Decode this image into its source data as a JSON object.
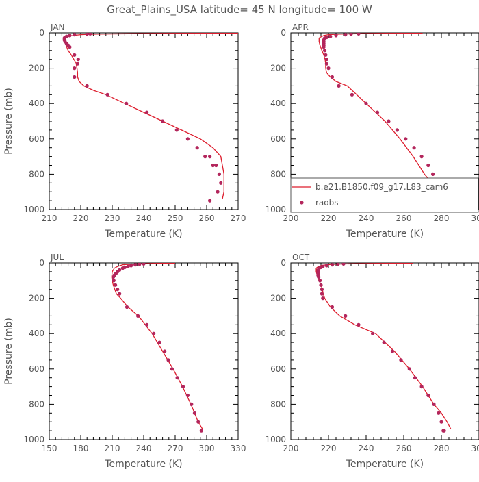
{
  "title": "Great_Plains_USA   latitude= 45 N longitude= 100 W",
  "legend": {
    "model_label": "b.e21.B1850.f09_g17.L83_cam6",
    "obs_label": "raobs"
  },
  "colors": {
    "model": "#dd1c2c",
    "obs": "#b3265c",
    "axis": "#000000",
    "text": "#555555"
  },
  "chart_data": [
    {
      "type": "line",
      "panel": "JAN",
      "xlabel": "Temperature (K)",
      "ylabel": "Pressure (mb)",
      "xlim": [
        210,
        270
      ],
      "ylim": [
        1000,
        0
      ],
      "y_inverted": true,
      "xticks": [
        "210",
        "220",
        "230",
        "240",
        "250",
        "260",
        "270"
      ],
      "yticks": [
        "0",
        "200",
        "400",
        "600",
        "800",
        "1000"
      ],
      "series": [
        {
          "name": "b.e21.B1850.f09_g17.L83_cam6",
          "mode": "line",
          "x": [
            270,
            250,
            235,
            225,
            220,
            217.5,
            216,
            215.5,
            215,
            215,
            215.3,
            216,
            217,
            217.8,
            218.5,
            218.8,
            219,
            219,
            219.5,
            221,
            224,
            228,
            234,
            240,
            246,
            252,
            258,
            262,
            264.5,
            265.5,
            265.5,
            265
          ],
          "y": [
            2,
            3,
            5,
            7,
            10,
            15,
            20,
            25,
            30,
            50,
            70,
            100,
            125,
            150,
            170,
            200,
            225,
            250,
            275,
            300,
            325,
            350,
            400,
            450,
            500,
            550,
            600,
            650,
            700,
            800,
            900,
            940
          ]
        },
        {
          "name": "raobs",
          "mode": "markers",
          "x": [
            223,
            222,
            218,
            216.5,
            215.5,
            215,
            214.8,
            214.8,
            215,
            215.5,
            216,
            216.5,
            218,
            219.2,
            219,
            218,
            218,
            222,
            228.5,
            234.5,
            241,
            246,
            250.5,
            254,
            257,
            259.5,
            261,
            262,
            263,
            264,
            264.5,
            263.5,
            261
          ],
          "y": [
            5,
            7,
            10,
            15,
            20,
            25,
            30,
            40,
            50,
            60,
            70,
            80,
            125,
            150,
            175,
            200,
            250,
            300,
            350,
            400,
            450,
            500,
            550,
            600,
            650,
            700,
            700,
            750,
            750,
            800,
            850,
            900,
            950
          ]
        }
      ]
    },
    {
      "type": "line",
      "panel": "APR",
      "xlabel": "Temperature (K)",
      "ylabel": "Pressure (mb)",
      "xlim": [
        200,
        300
      ],
      "ylim": [
        1000,
        0
      ],
      "y_inverted": true,
      "xticks": [
        "200",
        "220",
        "240",
        "260",
        "280",
        "300"
      ],
      "yticks": [
        "0",
        "200",
        "400",
        "600",
        "800",
        "1000"
      ],
      "series": [
        {
          "name": "b.e21.B1850.f09_g17.L83_cam6",
          "mode": "line",
          "x": [
            270,
            250,
            235,
            226,
            220,
            217.5,
            216.5,
            215.5,
            215,
            215,
            215.5,
            216.5,
            217.5,
            218.2,
            218.5,
            218.5,
            219,
            221,
            224,
            230,
            240,
            250,
            258,
            265,
            271,
            275,
            278,
            280.5
          ],
          "y": [
            2,
            3,
            5,
            7,
            10,
            15,
            20,
            25,
            30,
            50,
            70,
            100,
            125,
            150,
            175,
            200,
            225,
            250,
            275,
            300,
            400,
            500,
            600,
            700,
            800,
            850,
            900,
            950
          ]
        },
        {
          "name": "raobs",
          "mode": "markers",
          "x": [
            236,
            232,
            229,
            224,
            221,
            219,
            218,
            217.5,
            217.5,
            217.5,
            217.5,
            217.5,
            218,
            218.5,
            219,
            219,
            220,
            222,
            225.5,
            232.5,
            240,
            246,
            252,
            256.5,
            261,
            265.5,
            269.5,
            273,
            275.5,
            278,
            280
          ],
          "y": [
            5,
            7,
            10,
            15,
            20,
            25,
            30,
            40,
            50,
            60,
            70,
            80,
            100,
            125,
            150,
            175,
            200,
            250,
            300,
            350,
            400,
            450,
            500,
            550,
            600,
            650,
            700,
            750,
            800,
            850,
            900
          ]
        }
      ]
    },
    {
      "type": "line",
      "panel": "JUL",
      "xlabel": "Temperature (K)",
      "ylabel": "Pressure (mb)",
      "xlim": [
        150,
        330
      ],
      "ylim": [
        1000,
        0
      ],
      "y_inverted": true,
      "xticks": [
        "150",
        "180",
        "210",
        "240",
        "270",
        "300",
        "330"
      ],
      "yticks": [
        "0",
        "200",
        "400",
        "600",
        "800",
        "1000"
      ],
      "series": [
        {
          "name": "b.e21.B1850.f09_g17.L83_cam6",
          "mode": "line",
          "x": [
            270,
            250,
            238,
            228,
            220,
            215,
            212,
            210,
            209.5,
            210,
            211,
            212.5,
            214,
            218,
            225,
            235,
            248,
            258,
            268,
            277,
            285,
            292,
            296
          ],
          "y": [
            2,
            3,
            5,
            7,
            10,
            20,
            30,
            50,
            80,
            100,
            125,
            150,
            175,
            200,
            250,
            300,
            400,
            500,
            600,
            700,
            800,
            900,
            940
          ]
        },
        {
          "name": "raobs",
          "mode": "markers",
          "x": [
            240,
            236,
            232,
            228,
            225,
            222,
            220,
            217,
            215,
            213.5,
            212,
            211,
            211.5,
            213,
            215,
            217,
            224,
            234.5,
            243,
            249.5,
            255,
            260,
            263.5,
            267,
            272,
            277.5,
            282,
            285.5,
            288.5,
            292,
            295
          ],
          "y": [
            5,
            7,
            10,
            15,
            20,
            25,
            30,
            40,
            50,
            60,
            70,
            80,
            100,
            125,
            150,
            175,
            250,
            300,
            350,
            400,
            450,
            500,
            550,
            600,
            650,
            700,
            750,
            800,
            850,
            900,
            950
          ]
        }
      ]
    },
    {
      "type": "line",
      "panel": "OCT",
      "xlabel": "Temperature (K)",
      "ylabel": "Pressure (mb)",
      "xlim": [
        200,
        300
      ],
      "ylim": [
        1000,
        0
      ],
      "y_inverted": true,
      "xticks": [
        "200",
        "220",
        "240",
        "260",
        "280",
        "300"
      ],
      "yticks": [
        "0",
        "200",
        "400",
        "600",
        "800",
        "1000"
      ],
      "series": [
        {
          "name": "b.e21.B1850.f09_g17.L83_cam6",
          "mode": "line",
          "x": [
            265,
            245,
            232,
            224,
            219,
            216,
            215,
            214,
            213.5,
            213.5,
            214,
            215,
            216,
            216.8,
            217.2,
            218,
            221,
            226,
            234,
            245,
            255,
            263,
            270,
            276,
            280,
            283,
            285
          ],
          "y": [
            2,
            3,
            5,
            7,
            10,
            15,
            20,
            25,
            30,
            50,
            70,
            100,
            125,
            150,
            175,
            200,
            250,
            300,
            350,
            400,
            500,
            600,
            700,
            800,
            850,
            900,
            940
          ]
        },
        {
          "name": "raobs",
          "mode": "markers",
          "x": [
            228,
            225,
            222,
            219,
            217,
            216,
            215,
            214.5,
            214.5,
            214.5,
            214.5,
            214.8,
            215.5,
            216,
            216.5,
            216.5,
            217,
            222,
            229,
            236,
            243.5,
            249.5,
            254,
            258.5,
            263,
            266,
            269.5,
            273,
            276,
            278.5,
            280,
            281,
            281.5
          ],
          "y": [
            5,
            7,
            10,
            15,
            20,
            25,
            30,
            40,
            50,
            60,
            70,
            80,
            100,
            125,
            150,
            175,
            200,
            250,
            300,
            350,
            400,
            450,
            500,
            550,
            600,
            650,
            700,
            750,
            800,
            850,
            900,
            950,
            950
          ]
        }
      ]
    }
  ]
}
